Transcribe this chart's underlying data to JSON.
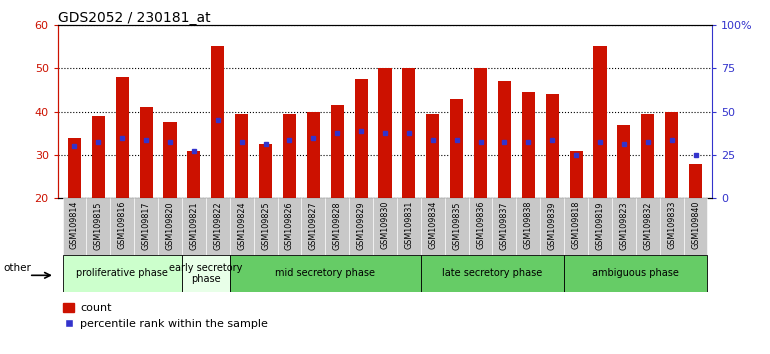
{
  "title": "GDS2052 / 230181_at",
  "samples": [
    "GSM109814",
    "GSM109815",
    "GSM109816",
    "GSM109817",
    "GSM109820",
    "GSM109821",
    "GSM109822",
    "GSM109824",
    "GSM109825",
    "GSM109826",
    "GSM109827",
    "GSM109828",
    "GSM109829",
    "GSM109830",
    "GSM109831",
    "GSM109834",
    "GSM109835",
    "GSM109836",
    "GSM109837",
    "GSM109838",
    "GSM109839",
    "GSM109818",
    "GSM109819",
    "GSM109823",
    "GSM109832",
    "GSM109833",
    "GSM109840"
  ],
  "count_values": [
    34,
    39,
    48,
    41,
    37.5,
    31,
    55,
    39.5,
    32.5,
    39.5,
    40,
    41.5,
    47.5,
    50,
    50,
    39.5,
    43,
    50,
    47,
    44.5,
    44,
    31,
    55,
    37,
    39.5,
    40,
    28
  ],
  "percentile_values": [
    32,
    33,
    34,
    33.5,
    33,
    31,
    38,
    33,
    32.5,
    33.5,
    34,
    35,
    35.5,
    35,
    35,
    33.5,
    33.5,
    33,
    33,
    33,
    33.5,
    30,
    33,
    32.5,
    33,
    33.5,
    30
  ],
  "ylim_left": [
    20,
    60
  ],
  "ylim_right": [
    0,
    100
  ],
  "yticks_left": [
    20,
    30,
    40,
    50,
    60
  ],
  "yticks_right": [
    0,
    25,
    50,
    75,
    100
  ],
  "bar_color": "#cc1100",
  "percentile_color": "#3333cc",
  "left_axis_color": "#cc1100",
  "right_axis_color": "#3333cc",
  "tick_bg_color": "#c8c8c8",
  "phase_groups": [
    {
      "label": "proliferative phase",
      "start": 0,
      "end": 4,
      "color": "#ccffcc"
    },
    {
      "label": "early secretory\nphase",
      "start": 5,
      "end": 6,
      "color": "#e8ffe8"
    },
    {
      "label": "mid secretory phase",
      "start": 7,
      "end": 14,
      "color": "#66cc66"
    },
    {
      "label": "late secretory phase",
      "start": 15,
      "end": 20,
      "color": "#66cc66"
    },
    {
      "label": "ambiguous phase",
      "start": 21,
      "end": 26,
      "color": "#66cc66"
    }
  ]
}
